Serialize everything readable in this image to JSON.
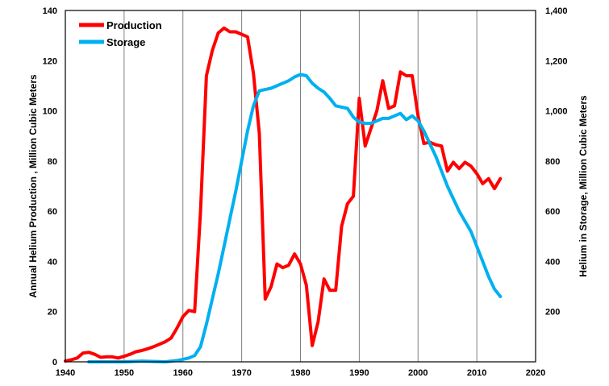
{
  "chart_data": {
    "type": "line",
    "x_axis": {
      "range": [
        1940,
        2020
      ],
      "ticks": [
        1940,
        1950,
        1960,
        1970,
        1980,
        1990,
        2000,
        2010,
        2020
      ]
    },
    "y_left": {
      "label": "Annual Helium Production , Million Cubic Meters",
      "range": [
        0,
        140
      ],
      "ticks": [
        0,
        20,
        40,
        60,
        80,
        100,
        120,
        140
      ],
      "tick_labels": [
        "0",
        "20",
        "40",
        "60",
        "80",
        "100",
        "120",
        "140"
      ]
    },
    "y_right": {
      "label": "Helium in Storage, Million Cubic Meters",
      "range": [
        0,
        1400
      ],
      "ticks": [
        200,
        400,
        600,
        800,
        1000,
        1200,
        1400
      ],
      "tick_labels": [
        "200",
        "400",
        "600",
        "800",
        "1,000",
        "1,200",
        "1,400"
      ]
    },
    "grid": "vertical",
    "legend": "top-left",
    "series": [
      {
        "name": "Production",
        "axis": "left",
        "color": "#ff0000",
        "points": [
          [
            1940,
            0.3
          ],
          [
            1941,
            0.8
          ],
          [
            1942,
            1.5
          ],
          [
            1943,
            3.5
          ],
          [
            1944,
            3.8
          ],
          [
            1945,
            3.0
          ],
          [
            1946,
            1.8
          ],
          [
            1947,
            2.0
          ],
          [
            1948,
            2.0
          ],
          [
            1949,
            1.5
          ],
          [
            1950,
            2.2
          ],
          [
            1951,
            3.0
          ],
          [
            1952,
            4.0
          ],
          [
            1953,
            4.5
          ],
          [
            1954,
            5.2
          ],
          [
            1955,
            6.0
          ],
          [
            1956,
            7.0
          ],
          [
            1957,
            8.0
          ],
          [
            1958,
            9.5
          ],
          [
            1959,
            13.5
          ],
          [
            1960,
            18.0
          ],
          [
            1961,
            20.5
          ],
          [
            1962,
            20.0
          ],
          [
            1963,
            60.0
          ],
          [
            1964,
            114.0
          ],
          [
            1965,
            124.0
          ],
          [
            1966,
            131.0
          ],
          [
            1967,
            133.0
          ],
          [
            1968,
            131.5
          ],
          [
            1969,
            131.5
          ],
          [
            1970,
            130.5
          ],
          [
            1971,
            129.5
          ],
          [
            1972,
            115.0
          ],
          [
            1973,
            91.0
          ],
          [
            1974,
            25.0
          ],
          [
            1975,
            30.0
          ],
          [
            1976,
            39.0
          ],
          [
            1977,
            37.5
          ],
          [
            1978,
            38.5
          ],
          [
            1979,
            43.0
          ],
          [
            1980,
            39.0
          ],
          [
            1981,
            30.5
          ],
          [
            1982,
            6.5
          ],
          [
            1983,
            16.0
          ],
          [
            1984,
            33.0
          ],
          [
            1985,
            28.5
          ],
          [
            1986,
            28.5
          ],
          [
            1987,
            54.0
          ],
          [
            1988,
            63.0
          ],
          [
            1989,
            66.0
          ],
          [
            1990,
            105.0
          ],
          [
            1991,
            86.0
          ],
          [
            1992,
            93.0
          ],
          [
            1993,
            100.0
          ],
          [
            1994,
            112.0
          ],
          [
            1995,
            101.0
          ],
          [
            1996,
            102.0
          ],
          [
            1997,
            115.5
          ],
          [
            1998,
            114.0
          ],
          [
            1999,
            114.0
          ],
          [
            2000,
            98.0
          ],
          [
            2001,
            87.0
          ],
          [
            2002,
            87.5
          ],
          [
            2003,
            86.5
          ],
          [
            2004,
            86.0
          ],
          [
            2005,
            76.0
          ],
          [
            2006,
            79.5
          ],
          [
            2007,
            77.0
          ],
          [
            2008,
            79.5
          ],
          [
            2009,
            78.0
          ],
          [
            2010,
            75.0
          ],
          [
            2011,
            71.0
          ],
          [
            2012,
            73.0
          ],
          [
            2013,
            69.0
          ],
          [
            2014,
            73.0
          ]
        ]
      },
      {
        "name": "Storage",
        "axis": "right",
        "color": "#00b0f0",
        "points": [
          [
            1944,
            0
          ],
          [
            1950,
            0
          ],
          [
            1953,
            3
          ],
          [
            1957,
            0
          ],
          [
            1959,
            5
          ],
          [
            1960,
            10
          ],
          [
            1961,
            15
          ],
          [
            1962,
            25
          ],
          [
            1963,
            60
          ],
          [
            1964,
            150
          ],
          [
            1965,
            250
          ],
          [
            1966,
            350
          ],
          [
            1967,
            460
          ],
          [
            1968,
            570
          ],
          [
            1969,
            680
          ],
          [
            1970,
            800
          ],
          [
            1971,
            920
          ],
          [
            1972,
            1020
          ],
          [
            1973,
            1080
          ],
          [
            1974,
            1085
          ],
          [
            1975,
            1090
          ],
          [
            1976,
            1100
          ],
          [
            1977,
            1110
          ],
          [
            1978,
            1120
          ],
          [
            1979,
            1135
          ],
          [
            1980,
            1145
          ],
          [
            1981,
            1140
          ],
          [
            1982,
            1110
          ],
          [
            1983,
            1090
          ],
          [
            1984,
            1075
          ],
          [
            1985,
            1050
          ],
          [
            1986,
            1020
          ],
          [
            1987,
            1015
          ],
          [
            1988,
            1010
          ],
          [
            1989,
            975
          ],
          [
            1990,
            955
          ],
          [
            1991,
            950
          ],
          [
            1992,
            950
          ],
          [
            1993,
            960
          ],
          [
            1994,
            970
          ],
          [
            1995,
            970
          ],
          [
            1996,
            980
          ],
          [
            1997,
            990
          ],
          [
            1998,
            965
          ],
          [
            1999,
            980
          ],
          [
            2000,
            960
          ],
          [
            2001,
            920
          ],
          [
            2002,
            870
          ],
          [
            2003,
            820
          ],
          [
            2004,
            760
          ],
          [
            2005,
            700
          ],
          [
            2006,
            650
          ],
          [
            2007,
            600
          ],
          [
            2008,
            560
          ],
          [
            2009,
            520
          ],
          [
            2010,
            460
          ],
          [
            2011,
            400
          ],
          [
            2012,
            340
          ],
          [
            2013,
            290
          ],
          [
            2014,
            260
          ]
        ]
      }
    ]
  }
}
